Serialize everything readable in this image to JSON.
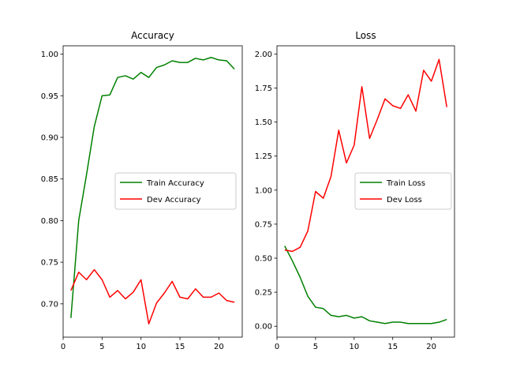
{
  "chart_data": [
    {
      "type": "line",
      "title": "Accuracy",
      "xlabel": "",
      "ylabel": "",
      "xlim": [
        0,
        23
      ],
      "ylim": [
        0.66,
        1.01
      ],
      "xticks": [
        0,
        5,
        10,
        15,
        20
      ],
      "yticks": [
        0.7,
        0.75,
        0.8,
        0.85,
        0.9,
        0.95,
        1.0
      ],
      "ytick_labels": [
        "0.70",
        "0.75",
        "0.80",
        "0.85",
        "0.90",
        "0.95",
        "1.00"
      ],
      "legend_position": "center-right",
      "grid": false,
      "x": [
        1,
        2,
        3,
        4,
        5,
        6,
        7,
        8,
        9,
        10,
        11,
        12,
        13,
        14,
        15,
        16,
        17,
        18,
        19,
        20,
        21,
        22
      ],
      "series": [
        {
          "name": "Train Accuracy",
          "color": "#008000",
          "values": [
            0.683,
            0.8,
            0.855,
            0.913,
            0.95,
            0.951,
            0.972,
            0.974,
            0.97,
            0.978,
            0.972,
            0.984,
            0.987,
            0.992,
            0.99,
            0.99,
            0.995,
            0.993,
            0.996,
            0.993,
            0.992,
            0.982
          ]
        },
        {
          "name": "Dev Accuracy",
          "color": "#ff0000",
          "values": [
            0.716,
            0.738,
            0.729,
            0.741,
            0.729,
            0.708,
            0.716,
            0.706,
            0.714,
            0.729,
            0.676,
            0.701,
            0.713,
            0.727,
            0.708,
            0.706,
            0.718,
            0.708,
            0.708,
            0.713,
            0.704,
            0.702
          ]
        }
      ]
    },
    {
      "type": "line",
      "title": "Loss",
      "xlabel": "",
      "ylabel": "",
      "xlim": [
        0,
        23
      ],
      "ylim": [
        -0.08,
        2.06
      ],
      "xticks": [
        0,
        5,
        10,
        15,
        20
      ],
      "yticks": [
        0.0,
        0.25,
        0.5,
        0.75,
        1.0,
        1.25,
        1.5,
        1.75,
        2.0
      ],
      "ytick_labels": [
        "0.00",
        "0.25",
        "0.50",
        "0.75",
        "1.00",
        "1.25",
        "1.50",
        "1.75",
        "2.00"
      ],
      "legend_position": "center-right",
      "grid": false,
      "x": [
        1,
        2,
        3,
        4,
        5,
        6,
        7,
        8,
        9,
        10,
        11,
        12,
        13,
        14,
        15,
        16,
        17,
        18,
        19,
        20,
        21,
        22
      ],
      "series": [
        {
          "name": "Train Loss",
          "color": "#008000",
          "values": [
            0.59,
            0.48,
            0.36,
            0.22,
            0.14,
            0.13,
            0.08,
            0.07,
            0.08,
            0.06,
            0.07,
            0.04,
            0.03,
            0.02,
            0.03,
            0.03,
            0.02,
            0.02,
            0.02,
            0.02,
            0.03,
            0.05
          ]
        },
        {
          "name": "Dev Loss",
          "color": "#ff0000",
          "values": [
            0.56,
            0.55,
            0.58,
            0.7,
            0.99,
            0.94,
            1.1,
            1.44,
            1.2,
            1.33,
            1.76,
            1.38,
            1.52,
            1.67,
            1.62,
            1.6,
            1.7,
            1.58,
            1.88,
            1.8,
            1.96,
            1.61
          ]
        }
      ]
    }
  ]
}
